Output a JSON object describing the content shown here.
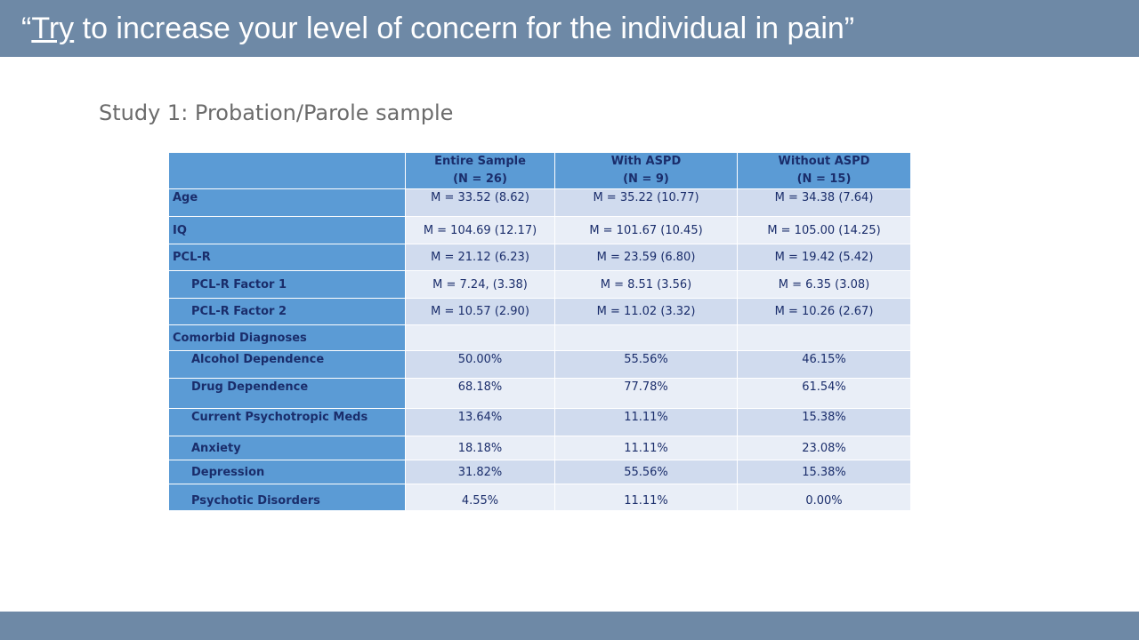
{
  "slide": {
    "title_open_quote": "“",
    "title_underlined": "Try",
    "title_rest": " to increase your level of concern for the individual in pain”",
    "subtitle": "Study 1: Probation/Parole sample"
  },
  "table": {
    "headers": [
      {
        "label": "",
        "sub": ""
      },
      {
        "label": "Entire Sample",
        "sub": "(N = 26)"
      },
      {
        "label": "With ASPD",
        "sub": "(N = 9)"
      },
      {
        "label": "Without ASPD",
        "sub": "(N = 15)"
      }
    ],
    "rows": [
      {
        "label": "Age",
        "values": [
          "M = 33.52 (8.62)",
          "M = 35.22 (10.77)",
          "M = 34.38 (7.64)"
        ]
      },
      {
        "label": "IQ",
        "values": [
          "M = 104.69 (12.17)",
          "M = 101.67 (10.45)",
          "M = 105.00 (14.25)"
        ]
      },
      {
        "label": "PCL-R",
        "values": [
          "M = 21.12 (6.23)",
          "M = 23.59 (6.80)",
          "M = 19.42 (5.42)"
        ]
      },
      {
        "label": "PCL-R Factor 1",
        "values": [
          "M = 7.24, (3.38)",
          "M = 8.51 (3.56)",
          "M = 6.35 (3.08)"
        ]
      },
      {
        "label": "PCL-R Factor 2",
        "values": [
          "M = 10.57 (2.90)",
          "M = 11.02 (3.32)",
          "M = 10.26 (2.67)"
        ]
      },
      {
        "label": "Comorbid Diagnoses",
        "values": [
          "",
          "",
          ""
        ]
      },
      {
        "label": "Alcohol Dependence",
        "values": [
          "50.00%",
          "55.56%",
          "46.15%"
        ]
      },
      {
        "label": "Drug Dependence",
        "values": [
          "68.18%",
          "77.78%",
          "61.54%"
        ]
      },
      {
        "label": "Current Psychotropic Meds",
        "values": [
          "13.64%",
          "11.11%",
          "15.38%"
        ]
      },
      {
        "label": "Anxiety",
        "values": [
          "18.18%",
          "11.11%",
          "23.08%"
        ]
      },
      {
        "label": "Depression",
        "values": [
          "31.82%",
          "55.56%",
          "15.38%"
        ]
      },
      {
        "label": "Psychotic Disorders",
        "values": [
          "4.55%",
          "11.11%",
          "0.00%"
        ]
      }
    ]
  },
  "colors": {
    "bar": "#6e89a6",
    "header_fill": "#5b9bd5",
    "row_band_dark": "#d0dbee",
    "row_band_light": "#e9eef7",
    "table_text": "#1a2d6b"
  }
}
